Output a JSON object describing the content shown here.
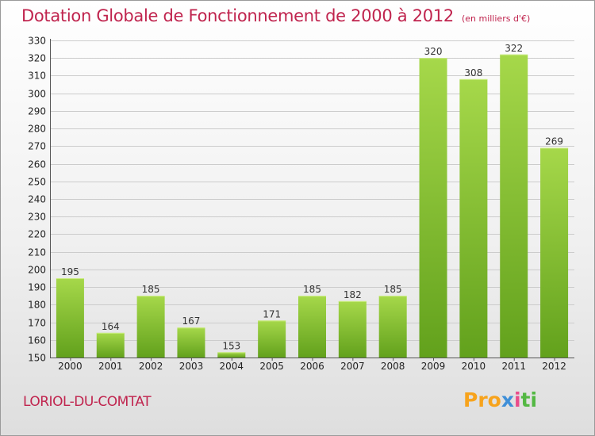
{
  "header": {
    "title": "Dotation Globale de Fonctionnement de 2000 à 2012",
    "unit": "(en milliers d'€)"
  },
  "footer": {
    "city": "LORIOL-DU-COMTAT",
    "logo": [
      "Pro",
      "x",
      "i",
      "ti"
    ]
  },
  "colors": {
    "bar_top": "#a6d84a",
    "bar_bottom": "#62a11c",
    "title": "#c0244e"
  },
  "chart_data": {
    "type": "bar",
    "categories": [
      "2000",
      "2001",
      "2002",
      "2003",
      "2004",
      "2005",
      "2006",
      "2007",
      "2008",
      "2009",
      "2010",
      "2011",
      "2012"
    ],
    "values": [
      195,
      164,
      185,
      167,
      153,
      171,
      185,
      182,
      185,
      320,
      308,
      322,
      269
    ],
    "ylim": [
      150,
      330
    ],
    "yticks": [
      150,
      160,
      170,
      180,
      190,
      200,
      210,
      220,
      230,
      240,
      250,
      260,
      270,
      280,
      290,
      300,
      310,
      320,
      330
    ],
    "grid": true,
    "data_labels": true
  }
}
